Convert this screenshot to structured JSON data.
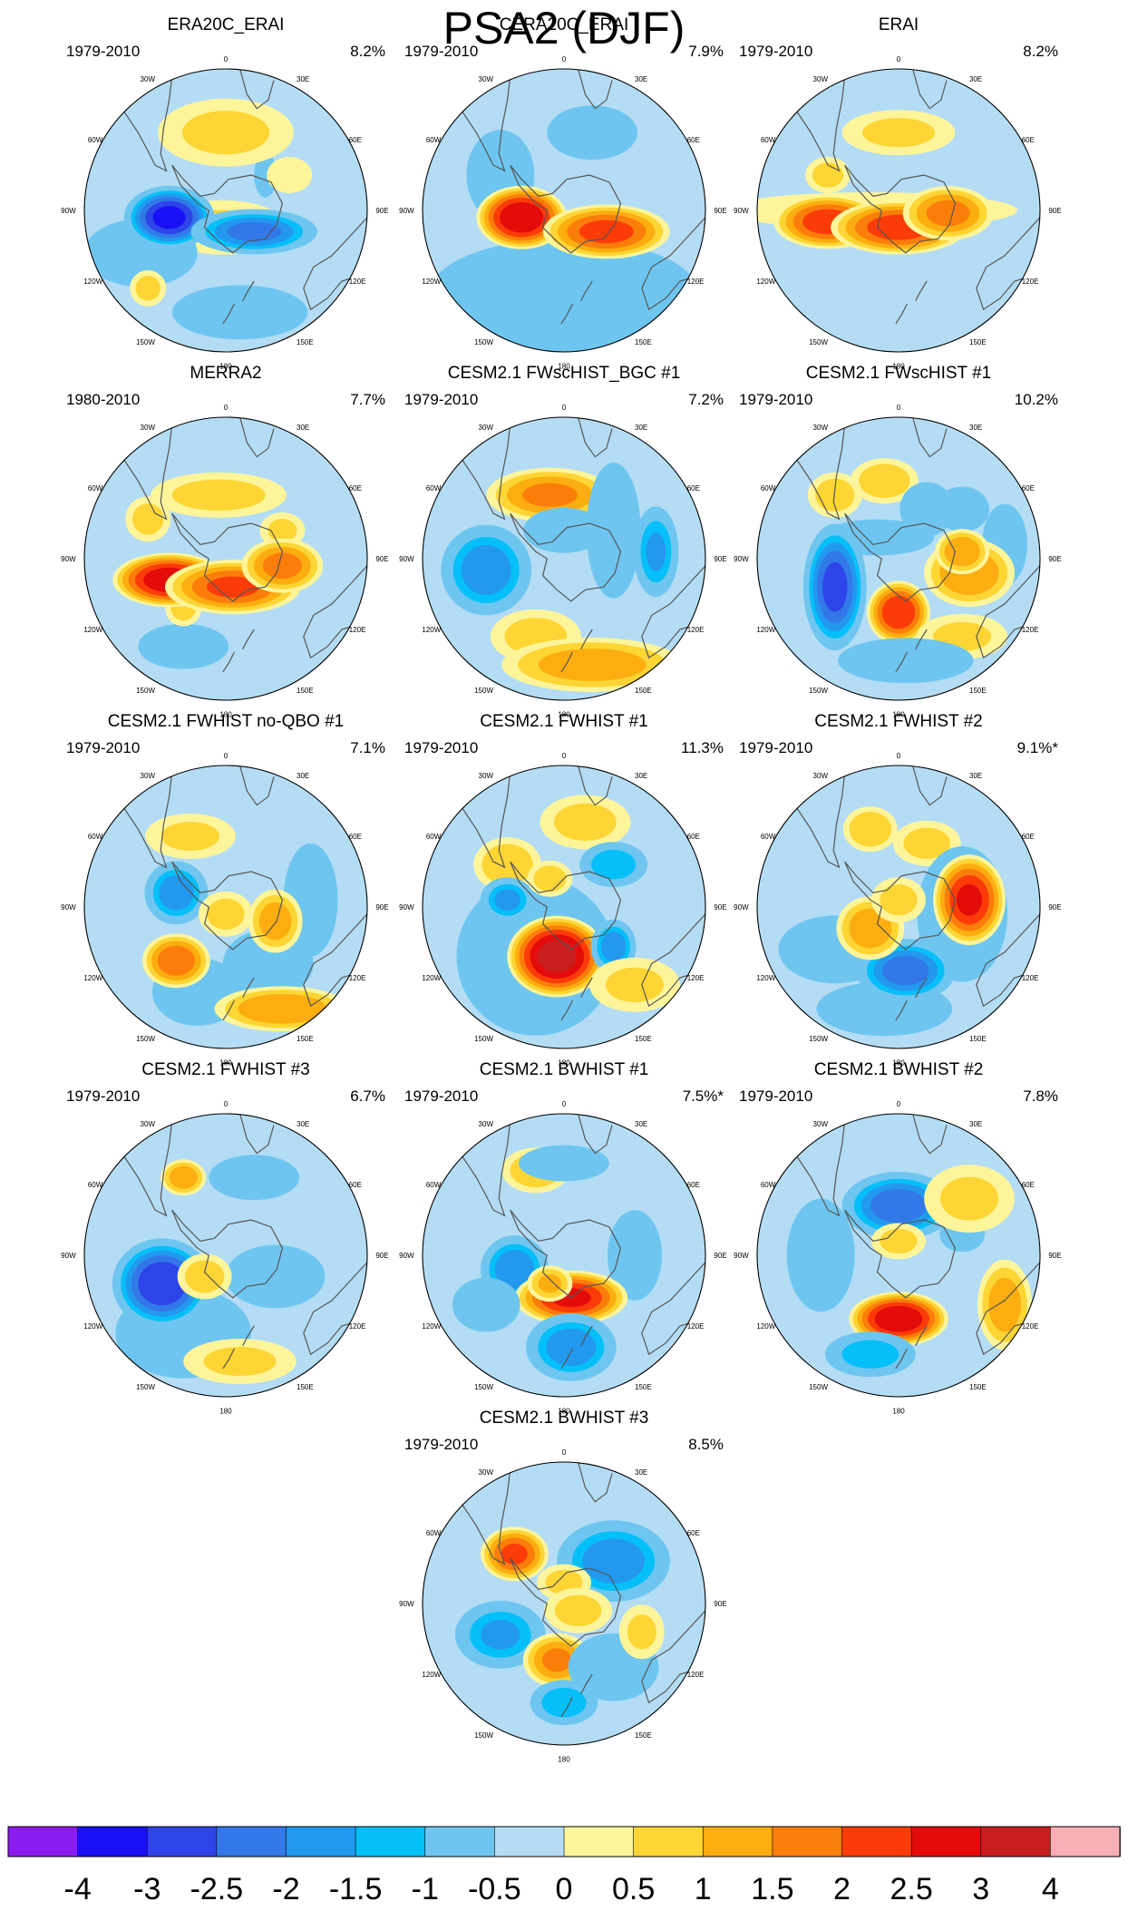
{
  "chart_data": {
    "type": "contour_map",
    "projection": "south_polar_stereographic",
    "title": "PSA2 (DJF)",
    "longitude_labels": [
      "0",
      "30E",
      "60E",
      "90E",
      "120E",
      "150E",
      "180",
      "150W",
      "120W",
      "90W",
      "60W",
      "30W"
    ],
    "colorbar": {
      "tick_labels": [
        "-4",
        "-3",
        "-2.5",
        "-2",
        "-1.5",
        "-1",
        "-0.5",
        "0",
        "0.5",
        "1",
        "1.5",
        "2",
        "2.5",
        "3",
        "4"
      ],
      "colors": [
        "#8b1cf0",
        "#1a10f5",
        "#2c44e8",
        "#3278e8",
        "#2299ee",
        "#05bff8",
        "#6ec6f0",
        "#b4ddf5",
        "#fef59a",
        "#fdd534",
        "#fcad10",
        "#fb7d0a",
        "#fb3c09",
        "#e40b0b",
        "#c81e1e",
        "#f9b0b4"
      ]
    },
    "panels": [
      {
        "title": "ERA20C_ERAI",
        "period": "1979-2010",
        "variance": "8.2%",
        "blobs": [
          [
            -0.02,
            0.12,
            0.28,
            0.12,
            0.5
          ],
          [
            0.28,
            -0.25,
            0.05,
            0.1,
            -0.6
          ],
          [
            -0.6,
            0.3,
            0.25,
            0.15,
            -0.7
          ],
          [
            0.1,
            0.72,
            0.3,
            0.12,
            -0.6
          ],
          [
            -0.4,
            0.05,
            0.2,
            0.14,
            -3.1
          ],
          [
            0.2,
            0.15,
            0.28,
            0.1,
            -2.1
          ],
          [
            -0.55,
            0.55,
            0.08,
            0.08,
            0.6
          ],
          [
            0.0,
            -0.55,
            0.3,
            0.15,
            0.5
          ],
          [
            0.45,
            -0.25,
            0.1,
            0.08,
            0.4
          ]
        ]
      },
      {
        "title": "CERA20C_ERAI",
        "period": "1979-2010",
        "variance": "7.9%",
        "blobs": [
          [
            -0.45,
            -0.25,
            0.15,
            0.2,
            -0.7
          ],
          [
            0.2,
            -0.55,
            0.2,
            0.12,
            -0.7
          ],
          [
            0.0,
            0.6,
            0.6,
            0.25,
            -0.3
          ],
          [
            -0.3,
            0.05,
            0.2,
            0.14,
            2.9
          ],
          [
            0.3,
            0.15,
            0.28,
            0.12,
            2.1
          ]
        ]
      },
      {
        "title": "ERAI",
        "period": "1979-2010",
        "variance": "8.2%",
        "blobs": [
          [
            -0.2,
            0.0,
            0.65,
            0.08,
            0.3
          ],
          [
            -0.5,
            -0.25,
            0.1,
            0.08,
            0.6
          ],
          [
            0.0,
            -0.55,
            0.25,
            0.1,
            0.5
          ],
          [
            -0.5,
            0.08,
            0.24,
            0.12,
            2.2
          ],
          [
            0.0,
            0.12,
            0.3,
            0.12,
            2.2
          ],
          [
            0.35,
            0.02,
            0.2,
            0.12,
            1.6
          ]
        ]
      },
      {
        "title": "MERRA2",
        "period": "1980-2010",
        "variance": "7.7%",
        "blobs": [
          [
            -0.55,
            -0.28,
            0.1,
            0.1,
            0.6
          ],
          [
            -0.05,
            -0.45,
            0.3,
            0.1,
            0.6
          ],
          [
            0.4,
            -0.2,
            0.1,
            0.08,
            0.5
          ],
          [
            -0.3,
            0.62,
            0.2,
            0.1,
            -0.5
          ],
          [
            -0.3,
            0.35,
            0.08,
            0.08,
            0.6
          ],
          [
            -0.4,
            0.15,
            0.25,
            0.12,
            2.8
          ],
          [
            0.05,
            0.2,
            0.3,
            0.12,
            2.0
          ],
          [
            0.4,
            0.05,
            0.18,
            0.12,
            1.6
          ]
        ]
      },
      {
        "title": "CESM2.1 FWscHIST_BGC #1",
        "period": "1979-2010",
        "variance": "7.2%",
        "blobs": [
          [
            -0.1,
            -0.45,
            0.28,
            0.12,
            1.5
          ],
          [
            0.0,
            -0.2,
            0.18,
            0.1,
            -0.6
          ],
          [
            0.35,
            -0.2,
            0.12,
            0.3,
            -0.6
          ],
          [
            0.65,
            -0.05,
            0.1,
            0.2,
            -1.5
          ],
          [
            -0.55,
            0.08,
            0.2,
            0.2,
            -1.8
          ],
          [
            -0.2,
            0.55,
            0.2,
            0.12,
            0.6
          ],
          [
            0.2,
            0.75,
            0.4,
            0.12,
            1.2
          ]
        ]
      },
      {
        "title": "CESM2.1 FWscHIST #1",
        "period": "1979-2010",
        "variance": "10.2%",
        "blobs": [
          [
            -0.45,
            -0.45,
            0.12,
            0.1,
            0.7
          ],
          [
            -0.1,
            -0.55,
            0.15,
            0.1,
            0.8
          ],
          [
            -0.15,
            -0.15,
            0.25,
            0.08,
            -0.6
          ],
          [
            0.2,
            -0.35,
            0.12,
            0.12,
            -0.6
          ],
          [
            0.45,
            -0.35,
            0.12,
            0.1,
            -0.7
          ],
          [
            0.75,
            -0.1,
            0.1,
            0.18,
            -0.8
          ],
          [
            -0.45,
            0.2,
            0.14,
            0.28,
            -2.6
          ],
          [
            0.0,
            0.38,
            0.14,
            0.14,
            2.4
          ],
          [
            0.5,
            0.1,
            0.2,
            0.15,
            1.4
          ],
          [
            0.45,
            -0.05,
            0.12,
            0.1,
            1.4
          ],
          [
            0.45,
            0.55,
            0.2,
            0.1,
            0.5
          ],
          [
            0.05,
            0.72,
            0.3,
            0.1,
            -0.7
          ]
        ]
      },
      {
        "title": "CESM2.1 FWHIST no-QBO #1",
        "period": "1979-2010",
        "variance": "7.1%",
        "blobs": [
          [
            -0.2,
            0.6,
            0.2,
            0.15,
            -0.6
          ],
          [
            0.3,
            0.4,
            0.2,
            0.15,
            -0.5
          ],
          [
            -0.25,
            -0.5,
            0.2,
            0.1,
            0.5
          ],
          [
            0.6,
            -0.05,
            0.12,
            0.25,
            -0.7
          ],
          [
            -0.35,
            -0.1,
            0.14,
            0.14,
            -1.8
          ],
          [
            -0.35,
            0.38,
            0.15,
            0.12,
            1.8
          ],
          [
            0.35,
            0.1,
            0.12,
            0.14,
            1.2
          ],
          [
            0.4,
            0.72,
            0.3,
            0.1,
            1.4
          ],
          [
            0.0,
            0.05,
            0.12,
            0.1,
            0.6
          ]
        ]
      },
      {
        "title": "CESM2.1 FWHIST #1",
        "period": "1979-2010",
        "variance": "11.3%",
        "blobs": [
          [
            -0.2,
            0.35,
            0.35,
            0.35,
            -0.7
          ],
          [
            -0.4,
            -0.3,
            0.15,
            0.12,
            0.8
          ],
          [
            0.15,
            -0.6,
            0.2,
            0.12,
            0.6
          ],
          [
            0.35,
            -0.3,
            0.15,
            0.1,
            -1.4
          ],
          [
            -0.4,
            -0.05,
            0.12,
            0.1,
            -1.6
          ],
          [
            -0.05,
            0.35,
            0.22,
            0.18,
            3.2
          ],
          [
            0.35,
            0.28,
            0.1,
            0.12,
            -1.8
          ],
          [
            -0.1,
            -0.2,
            0.1,
            0.08,
            0.7
          ],
          [
            0.5,
            0.55,
            0.2,
            0.12,
            0.5
          ]
        ]
      },
      {
        "title": "CESM2.1 FWHIST #2",
        "period": "1979-2010",
        "variance": "9.1%*",
        "blobs": [
          [
            -0.2,
            -0.55,
            0.12,
            0.1,
            0.9
          ],
          [
            0.2,
            -0.45,
            0.15,
            0.1,
            0.6
          ],
          [
            -0.1,
            0.72,
            0.3,
            0.12,
            -0.5
          ],
          [
            0.45,
            0.05,
            0.2,
            0.3,
            -0.6
          ],
          [
            0.5,
            -0.05,
            0.16,
            0.2,
            2.5
          ],
          [
            -0.45,
            0.3,
            0.25,
            0.15,
            -0.6
          ],
          [
            0.05,
            0.45,
            0.22,
            0.14,
            -2.2
          ],
          [
            -0.2,
            0.15,
            0.15,
            0.14,
            1.3
          ],
          [
            0.0,
            -0.05,
            0.12,
            0.1,
            0.6
          ]
        ]
      },
      {
        "title": "CESM2.1 FWHIST #3",
        "period": "1979-2010",
        "variance": "6.7%",
        "blobs": [
          [
            -0.3,
            0.55,
            0.3,
            0.2,
            -0.5
          ],
          [
            0.35,
            0.15,
            0.22,
            0.14,
            -0.6
          ],
          [
            0.2,
            -0.55,
            0.2,
            0.1,
            -0.6
          ],
          [
            -0.3,
            -0.55,
            0.1,
            0.08,
            1.3
          ],
          [
            -0.45,
            0.2,
            0.22,
            0.2,
            -2.9
          ],
          [
            -0.15,
            0.15,
            0.12,
            0.1,
            0.7
          ],
          [
            0.1,
            0.75,
            0.25,
            0.1,
            0.5
          ]
        ]
      },
      {
        "title": "CESM2.1 BWHIST #1",
        "period": "1979-2010",
        "variance": "7.5%*",
        "blobs": [
          [
            -0.2,
            -0.6,
            0.15,
            0.1,
            0.8
          ],
          [
            0.5,
            0.0,
            0.12,
            0.2,
            -0.6
          ],
          [
            0.0,
            -0.65,
            0.2,
            0.08,
            -0.5
          ],
          [
            -0.35,
            0.1,
            0.15,
            0.15,
            -1.9
          ],
          [
            0.05,
            0.3,
            0.25,
            0.12,
            2.5
          ],
          [
            -0.1,
            0.2,
            0.1,
            0.08,
            1.0
          ],
          [
            0.05,
            0.65,
            0.2,
            0.15,
            -1.8
          ],
          [
            -0.55,
            0.35,
            0.15,
            0.12,
            -0.6
          ]
        ]
      },
      {
        "title": "CESM2.1 BWHIST #2",
        "period": "1979-2010",
        "variance": "7.8%",
        "blobs": [
          [
            0.0,
            -0.35,
            0.25,
            0.15,
            -2.3
          ],
          [
            0.45,
            -0.15,
            0.1,
            0.08,
            -0.6
          ],
          [
            -0.55,
            0.0,
            0.15,
            0.25,
            -0.6
          ],
          [
            0.0,
            0.45,
            0.22,
            0.12,
            2.9
          ],
          [
            -0.2,
            0.7,
            0.2,
            0.1,
            -1.3
          ],
          [
            0.75,
            0.35,
            0.12,
            0.2,
            1.2
          ],
          [
            0.0,
            -0.1,
            0.12,
            0.08,
            0.6
          ],
          [
            0.5,
            -0.4,
            0.2,
            0.15,
            0.5
          ]
        ]
      },
      {
        "title": "CESM2.1 BWHIST #3",
        "period": "1979-2010",
        "variance": "8.5%",
        "blobs": [
          [
            -0.35,
            -0.35,
            0.15,
            0.12,
            2.0
          ],
          [
            0.35,
            -0.3,
            0.25,
            0.18,
            -1.8
          ],
          [
            0.0,
            -0.15,
            0.12,
            0.08,
            0.6
          ],
          [
            -0.45,
            0.22,
            0.2,
            0.15,
            -1.5
          ],
          [
            -0.05,
            0.4,
            0.15,
            0.12,
            1.5
          ],
          [
            0.0,
            0.7,
            0.15,
            0.1,
            -1.4
          ],
          [
            0.35,
            0.45,
            0.2,
            0.15,
            -0.6
          ],
          [
            0.1,
            0.05,
            0.15,
            0.1,
            0.6
          ],
          [
            0.55,
            0.2,
            0.1,
            0.12,
            0.5
          ]
        ]
      }
    ]
  }
}
